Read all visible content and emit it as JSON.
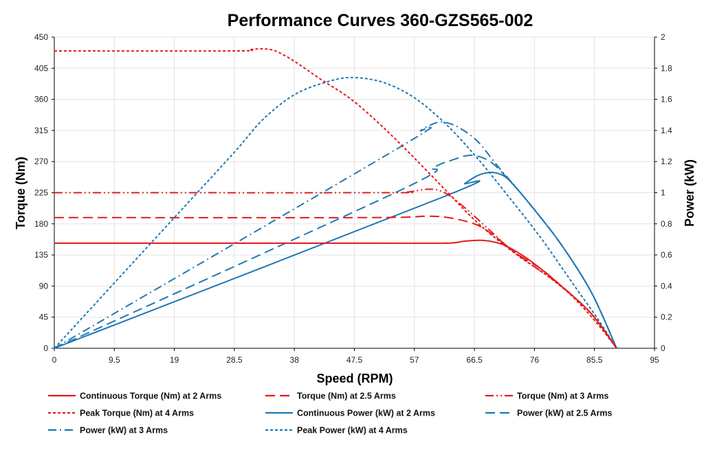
{
  "chart_data": {
    "type": "line",
    "title": "Performance Curves 360-GZS565-002",
    "xlabel": "Speed (RPM)",
    "ylabel": "Torque (Nm)",
    "y2label": "Power (kW)",
    "xlim": [
      0,
      95
    ],
    "ylim": [
      0,
      450
    ],
    "y2lim": [
      0,
      2
    ],
    "xticks": [
      "0",
      "9.5",
      "19",
      "28.5",
      "38",
      "47.5",
      "57",
      "66.5",
      "76",
      "85.5",
      "95"
    ],
    "yticks": [
      "0",
      "45",
      "90",
      "135",
      "180",
      "225",
      "270",
      "315",
      "360",
      "405",
      "450"
    ],
    "y2ticks": [
      "0",
      "0.2",
      "0.4",
      "0.6",
      "0.8",
      "1",
      "1.2",
      "1.4",
      "1.6",
      "1.8",
      "2"
    ],
    "grid": true,
    "legend_position": "bottom",
    "series": [
      {
        "name": "Continuous Torque (Nm) at 2 Arms",
        "axis": "left",
        "color": "#e31a1c",
        "dash": "solid",
        "x": [
          0,
          50,
          62,
          65,
          68,
          71,
          74,
          77,
          80,
          85,
          89
        ],
        "y": [
          152,
          152,
          152,
          155,
          156,
          150,
          135,
          115,
          92,
          50,
          0
        ]
      },
      {
        "name": "Torque (Nm) at 2.5 Arms",
        "axis": "left",
        "color": "#e31a1c",
        "dash": "longdash",
        "x": [
          0,
          50,
          59,
          63,
          67,
          70,
          73,
          77,
          80,
          85,
          89
        ],
        "y": [
          189,
          189,
          191,
          188,
          178,
          160,
          138,
          115,
          92,
          50,
          0
        ]
      },
      {
        "name": "Torque (Nm) at 3 Arms",
        "axis": "left",
        "color": "#e31a1c",
        "dash": "dashdotdot",
        "x": [
          0,
          52,
          56,
          59,
          61,
          63,
          66,
          69,
          72,
          76,
          80,
          85,
          89
        ],
        "y": [
          225,
          225,
          226,
          230,
          228,
          218,
          195,
          170,
          145,
          118,
          92,
          50,
          0
        ]
      },
      {
        "name": "Peak Torque (Nm) at 4 Arms",
        "axis": "left",
        "color": "#e31a1c",
        "dash": "shortdash",
        "x": [
          0,
          28.5,
          31,
          33,
          35,
          38,
          42,
          47,
          52,
          57,
          62,
          66,
          70,
          74,
          78,
          82,
          86,
          89
        ],
        "y": [
          430,
          430,
          432,
          433,
          430,
          415,
          390,
          360,
          320,
          275,
          228,
          190,
          158,
          130,
          105,
          75,
          35,
          0
        ]
      },
      {
        "name": "Continuous Power (kW) at 2 Arms",
        "axis": "right",
        "color": "#1f77b4",
        "dash": "solid",
        "x": [
          0,
          62,
          65,
          67,
          69,
          70.5,
          72,
          75,
          80,
          85,
          89
        ],
        "y": [
          0,
          0.98,
          1.06,
          1.11,
          1.13,
          1.12,
          1.08,
          0.94,
          0.68,
          0.36,
          0
        ]
      },
      {
        "name": "Power (kW) at 2.5 Arms",
        "axis": "right",
        "color": "#1f77b4",
        "dash": "longdash",
        "x": [
          0,
          55,
          60,
          63,
          66,
          69,
          72,
          75,
          80,
          85,
          89
        ],
        "y": [
          0,
          1.02,
          1.16,
          1.21,
          1.24,
          1.2,
          1.08,
          0.94,
          0.68,
          0.36,
          0
        ]
      },
      {
        "name": "Power (kW) at 3 Arms",
        "axis": "right",
        "color": "#1f77b4",
        "dash": "dashdot",
        "x": [
          0,
          55,
          58,
          60.5,
          62,
          64,
          67,
          70,
          75,
          80,
          85,
          89
        ],
        "y": [
          0,
          1.3,
          1.4,
          1.45,
          1.45,
          1.42,
          1.33,
          1.18,
          0.94,
          0.68,
          0.36,
          0
        ]
      },
      {
        "name": "Peak Power (kW) at 4 Arms",
        "axis": "right",
        "color": "#1f77b4",
        "dash": "shortdash",
        "x": [
          0,
          19,
          28.5,
          33,
          38,
          43,
          47,
          52,
          57,
          62,
          67,
          72,
          77,
          82,
          86,
          89
        ],
        "y": [
          0,
          0.84,
          1.26,
          1.47,
          1.63,
          1.71,
          1.74,
          1.71,
          1.61,
          1.44,
          1.22,
          0.97,
          0.71,
          0.42,
          0.19,
          0
        ]
      }
    ]
  }
}
